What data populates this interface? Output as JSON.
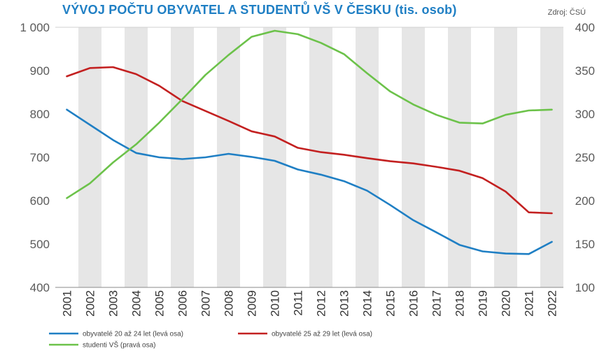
{
  "header": {
    "title": "VÝVOJ POČTU OBYVATEL A STUDENTŮ VŠ V ČESKU (tis. osob)",
    "source": "Zdroj: ČSÚ"
  },
  "chart_data": {
    "type": "line",
    "title": "VÝVOJ POČTU OBYVATEL A STUDENTŮ VŠ V ČESKU (tis. osob)",
    "x": [
      "2001",
      "2002",
      "2003",
      "2004",
      "2005",
      "2006",
      "2007",
      "2008",
      "2009",
      "2010",
      "2011",
      "2012",
      "2013",
      "2014",
      "2015",
      "2016",
      "2017",
      "2018",
      "2019",
      "2020",
      "2021",
      "2022"
    ],
    "y_left": {
      "lim": [
        400,
        1000
      ],
      "ticks": [
        "400",
        "500",
        "600",
        "700",
        "800",
        "900",
        "1 000"
      ]
    },
    "y_right": {
      "lim": [
        100,
        400
      ],
      "ticks": [
        "100",
        "150",
        "200",
        "250",
        "300",
        "350",
        "400"
      ]
    },
    "grid": "alternating grey vertical bands",
    "legend_position": "bottom-left",
    "series": [
      {
        "name": "obyvatelé 20 až 24 let (levá osa)",
        "axis": "left",
        "color": "#1f7fc4",
        "values": [
          810,
          775,
          740,
          710,
          700,
          696,
          700,
          708,
          701,
          692,
          672,
          660,
          645,
          623,
          590,
          555,
          527,
          498,
          483,
          478,
          477,
          505
        ]
      },
      {
        "name": "obyvatelé 25 až 29 let (levá osa)",
        "axis": "left",
        "color": "#c32020",
        "values": [
          887,
          906,
          908,
          892,
          865,
          830,
          807,
          784,
          760,
          748,
          722,
          712,
          706,
          698,
          691,
          686,
          678,
          669,
          652,
          621,
          573,
          571
        ]
      },
      {
        "name": "studenti VŠ (pravá osa)",
        "axis": "right",
        "color": "#6cc24a",
        "values": [
          203,
          220,
          244,
          265,
          290,
          317,
          345,
          368,
          389,
          396,
          392,
          382,
          369,
          347,
          326,
          311,
          299,
          290,
          289,
          299,
          304,
          305
        ]
      }
    ]
  }
}
